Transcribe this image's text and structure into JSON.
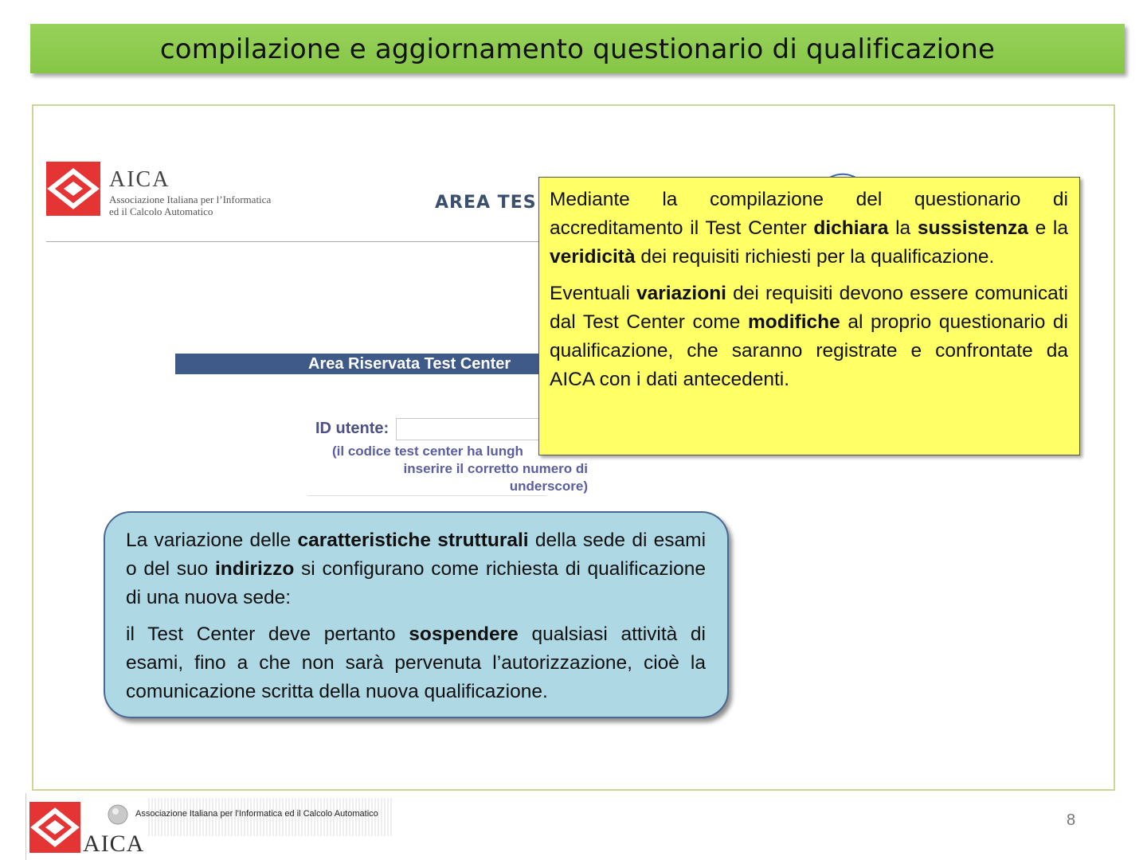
{
  "slide": {
    "title": "compilazione e aggiornamento questionario di qualificazione",
    "page_number": "8"
  },
  "embedded_screenshot": {
    "logo_name": "AICA",
    "logo_subtitle_line1": "Associazione Italiana per l’Informatica",
    "logo_subtitle_line2": "ed il Calcolo Automatico",
    "area_heading": "AREA TES",
    "area_bar_label": "Area Riservata Test Center",
    "id_label": "ID utente:",
    "id_hint_line1": "(il codice test center ha lungh",
    "id_hint_line2": "inserire il corretto numero di",
    "id_hint_line3": "underscore)"
  },
  "yellow_callout": {
    "p1_a": "Mediante la compilazione del questionario di accreditamento il Test Center ",
    "p1_b1": "dichiara",
    "p1_c": " la ",
    "p1_b2": "sussistenza",
    "p1_d": " e la ",
    "p1_b3": "veridicità",
    "p1_e": " dei requisiti richiesti per la qualificazione.",
    "p2_a": "Eventuali ",
    "p2_b1": "variazioni",
    "p2_c": " dei requisiti devono essere comunicati dal Test Center come ",
    "p2_b2": "modifiche",
    "p2_d": " al proprio questionario di qualificazione, che saranno registrate e confrontate da AICA con i dati antecedenti."
  },
  "blue_callout": {
    "p1_a": "La variazione delle ",
    "p1_b1": "caratteristiche strutturali",
    "p1_c": " della sede di esami o del suo ",
    "p1_b2": "indirizzo",
    "p1_d": " si configurano come richiesta di qualificazione di una nuova sede:",
    "p2_a": "il Test Center deve pertanto ",
    "p2_b1": "sospendere",
    "p2_c": " qualsiasi attività di esami, fino a che non sarà pervenuta l’autorizzazione, cioè la comunicazione scritta della nuova qualificazione."
  },
  "footer": {
    "association": "Associazione Italiana per l'Informatica ed il Calcolo Automatico",
    "logo_name": "AICA"
  },
  "colors": {
    "title_bar": "#8dcb4f",
    "yellow_box": "#ffff66",
    "blue_box": "#add8e4",
    "aica_red": "#e53434",
    "area_bar": "#3f5a88"
  }
}
